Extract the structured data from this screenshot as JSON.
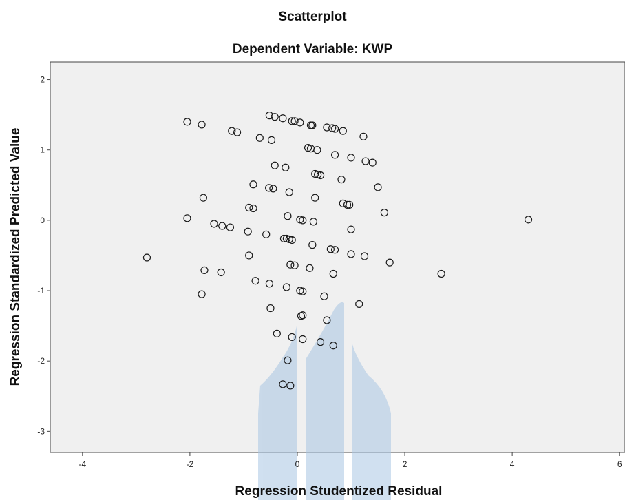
{
  "chart_data": {
    "type": "scatter",
    "title": "Scatterplot",
    "subtitle": "Dependent Variable: KWP",
    "xlabel": "Regression Studentized Residual",
    "ylabel": "Regression Standardized Predicted Value",
    "xlim": [
      -4.6,
      6.1
    ],
    "ylim": [
      -3.3,
      2.25
    ],
    "xticks": [
      -4,
      -2,
      0,
      2,
      4,
      6
    ],
    "yticks": [
      2,
      1,
      0,
      -1,
      -2,
      -3
    ],
    "grid": false,
    "legend": "none",
    "plot_background": "#f0f0f0",
    "marker_color": "#1a1a1a",
    "points": [
      [
        -2.05,
        1.4
      ],
      [
        -1.78,
        1.36
      ],
      [
        -1.22,
        1.27
      ],
      [
        -1.12,
        1.25
      ],
      [
        -0.7,
        1.17
      ],
      [
        -0.48,
        1.14
      ],
      [
        -0.52,
        1.49
      ],
      [
        -0.42,
        1.47
      ],
      [
        -0.27,
        1.45
      ],
      [
        -0.1,
        1.41
      ],
      [
        -0.05,
        1.41
      ],
      [
        0.05,
        1.39
      ],
      [
        0.25,
        1.35
      ],
      [
        0.28,
        1.35
      ],
      [
        0.55,
        1.32
      ],
      [
        0.65,
        1.31
      ],
      [
        0.7,
        1.3
      ],
      [
        0.85,
        1.27
      ],
      [
        1.23,
        1.19
      ],
      [
        0.2,
        1.03
      ],
      [
        0.25,
        1.02
      ],
      [
        0.37,
        1.0
      ],
      [
        0.7,
        0.93
      ],
      [
        1.0,
        0.89
      ],
      [
        1.27,
        0.84
      ],
      [
        1.4,
        0.82
      ],
      [
        -0.42,
        0.78
      ],
      [
        -0.22,
        0.75
      ],
      [
        0.33,
        0.66
      ],
      [
        0.38,
        0.65
      ],
      [
        0.43,
        0.64
      ],
      [
        -0.82,
        0.51
      ],
      [
        -0.53,
        0.46
      ],
      [
        -0.45,
        0.45
      ],
      [
        0.82,
        0.58
      ],
      [
        1.5,
        0.47
      ],
      [
        -0.15,
        0.4
      ],
      [
        -1.75,
        0.32
      ],
      [
        0.33,
        0.32
      ],
      [
        0.85,
        0.24
      ],
      [
        0.93,
        0.22
      ],
      [
        0.97,
        0.22
      ],
      [
        -0.9,
        0.18
      ],
      [
        -0.82,
        0.17
      ],
      [
        1.62,
        0.11
      ],
      [
        -2.05,
        0.03
      ],
      [
        -0.18,
        0.06
      ],
      [
        0.05,
        0.01
      ],
      [
        0.1,
        0.0
      ],
      [
        0.3,
        -0.02
      ],
      [
        -1.55,
        -0.05
      ],
      [
        -1.4,
        -0.08
      ],
      [
        -1.25,
        -0.1
      ],
      [
        1.0,
        -0.13
      ],
      [
        -0.92,
        -0.16
      ],
      [
        -0.58,
        -0.2
      ],
      [
        -0.25,
        -0.26
      ],
      [
        -0.2,
        -0.26
      ],
      [
        -0.15,
        -0.27
      ],
      [
        -0.1,
        -0.28
      ],
      [
        0.28,
        -0.35
      ],
      [
        0.62,
        -0.41
      ],
      [
        0.7,
        -0.42
      ],
      [
        1.0,
        -0.48
      ],
      [
        1.25,
        -0.51
      ],
      [
        -2.8,
        -0.53
      ],
      [
        -0.9,
        -0.5
      ],
      [
        1.72,
        -0.6
      ],
      [
        -0.13,
        -0.63
      ],
      [
        -0.05,
        -0.64
      ],
      [
        0.23,
        -0.68
      ],
      [
        -1.73,
        -0.71
      ],
      [
        -1.42,
        -0.74
      ],
      [
        0.67,
        -0.76
      ],
      [
        2.68,
        -0.76
      ],
      [
        -0.78,
        -0.86
      ],
      [
        -0.52,
        -0.9
      ],
      [
        -0.2,
        -0.95
      ],
      [
        0.05,
        -1.0
      ],
      [
        0.1,
        -1.01
      ],
      [
        0.5,
        -1.08
      ],
      [
        -1.78,
        -1.05
      ],
      [
        1.15,
        -1.19
      ],
      [
        -0.5,
        -1.25
      ],
      [
        0.1,
        -1.35
      ],
      [
        0.07,
        -1.36
      ],
      [
        0.55,
        -1.42
      ],
      [
        -0.38,
        -1.61
      ],
      [
        -0.1,
        -1.66
      ],
      [
        0.1,
        -1.69
      ],
      [
        0.43,
        -1.73
      ],
      [
        0.67,
        -1.78
      ],
      [
        -0.18,
        -1.99
      ],
      [
        -0.27,
        -2.33
      ],
      [
        -0.13,
        -2.35
      ],
      [
        4.3,
        0.01
      ]
    ]
  }
}
